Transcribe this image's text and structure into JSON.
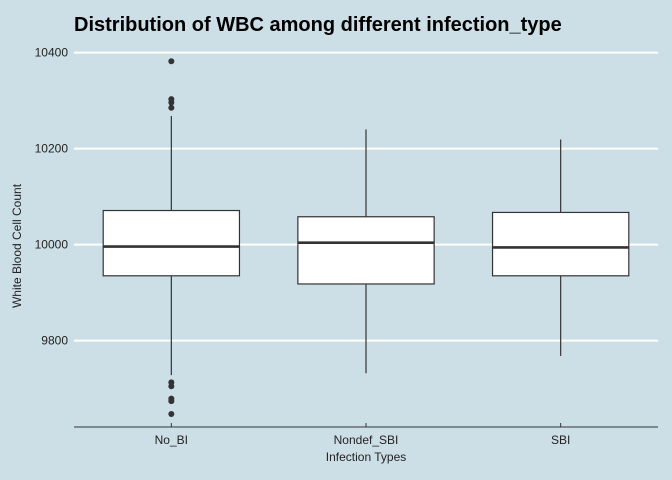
{
  "chart_data": {
    "type": "boxplot",
    "title": "Distribution of WBC among different infection_type",
    "xlabel": "Infection Types",
    "ylabel": "White Blood Cell Count",
    "ylim": [
      9620,
      10420
    ],
    "yticks": [
      9800,
      10000,
      10200,
      10400
    ],
    "grid": "horizontal",
    "colors": {
      "background": "#cddfe6",
      "gridline": "#ffffff",
      "box_fill": "#ffffff",
      "box_stroke": "#333333",
      "median": "#333333",
      "outlier": "#333333",
      "axis": "#333333"
    },
    "categories": [
      "No_BI",
      "Nondef_SBI",
      "SBI"
    ],
    "boxes": [
      {
        "category": "No_BI",
        "whisker_low": 9728,
        "q1": 9935,
        "median": 9996,
        "q3": 10071,
        "whisker_high": 10268,
        "outliers": [
          10382,
          10303,
          10296,
          10285,
          9713,
          9705,
          9679,
          9674,
          9647
        ]
      },
      {
        "category": "Nondef_SBI",
        "whisker_low": 9732,
        "q1": 9918,
        "median": 10004,
        "q3": 10058,
        "whisker_high": 10240,
        "outliers": []
      },
      {
        "category": "SBI",
        "whisker_low": 9768,
        "q1": 9935,
        "median": 9994,
        "q3": 10067,
        "whisker_high": 10219,
        "outliers": []
      }
    ]
  }
}
